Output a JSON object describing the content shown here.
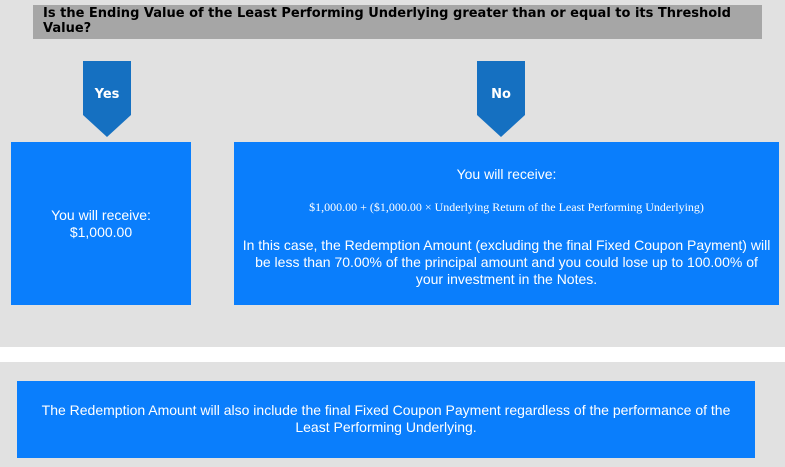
{
  "question": "Is the Ending Value of the Least Performing Underlying greater than or equal to its Threshold Value?",
  "yes_branch": {
    "label": "Yes",
    "receive_label": "You will receive:",
    "amount": "$1,000.00"
  },
  "no_branch": {
    "label": "No",
    "receive_label": "You will receive:",
    "formula": "$1,000.00 + ($1,000.00 × Underlying Return of the Least Performing Underlying)",
    "note": "In this case, the Redemption Amount (excluding the final Fixed Coupon Payment) will be less than 70.00% of the principal amount and you could lose up to 100.00% of your investment in the Notes."
  },
  "footer_note": "The Redemption Amount will also include the final Fixed Coupon Payment regardless of the performance of the Least Performing Underlying.",
  "colors": {
    "box": "#0a7efc",
    "arrow": "#1570c1",
    "question_bg": "#a6a6a6",
    "panel_bg": "#e1e1e1"
  }
}
